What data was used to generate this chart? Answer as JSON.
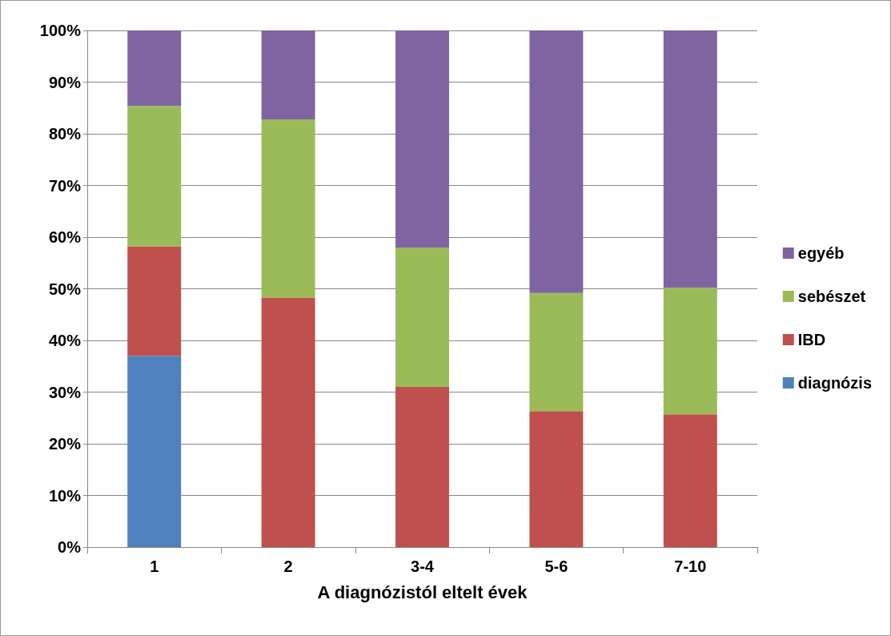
{
  "chart_data": {
    "type": "bar",
    "stacked": true,
    "xlabel": "A diagnózistól eltelt évek",
    "categories": [
      "1",
      "2",
      "3-4",
      "5-6",
      "7-10"
    ],
    "series": [
      {
        "name": "diagnózis",
        "color": "#4f81bd",
        "values": [
          37,
          0,
          0,
          0,
          0
        ]
      },
      {
        "name": "IBD",
        "color": "#c0504d",
        "values": [
          21.2,
          48.3,
          31,
          26.3,
          25.7
        ]
      },
      {
        "name": "sebészet",
        "color": "#9bbb59",
        "values": [
          27.2,
          34.5,
          27,
          22.9,
          24.5
        ]
      },
      {
        "name": "egyéb",
        "color": "#8064a2",
        "values": [
          14.6,
          17.2,
          42,
          50.8,
          49.8
        ]
      }
    ],
    "ylim": [
      0,
      100
    ],
    "yticks": [
      {
        "value": 0,
        "label": "0%"
      },
      {
        "value": 10,
        "label": "10%"
      },
      {
        "value": 20,
        "label": "20%"
      },
      {
        "value": 30,
        "label": "30%"
      },
      {
        "value": 40,
        "label": "40%"
      },
      {
        "value": 50,
        "label": "50%"
      },
      {
        "value": 60,
        "label": "60%"
      },
      {
        "value": 70,
        "label": "70%"
      },
      {
        "value": 80,
        "label": "80%"
      },
      {
        "value": 90,
        "label": "90%"
      },
      {
        "value": 100,
        "label": "100%"
      }
    ],
    "grid": "y",
    "legend": "right"
  }
}
